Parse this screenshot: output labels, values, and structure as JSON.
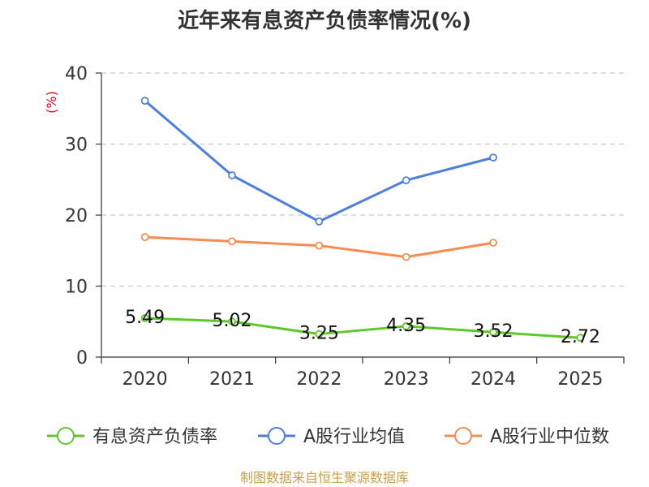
{
  "chart_data": {
    "type": "line",
    "title": "近年来有息资产负债率情况(%)",
    "ylabel": "(%)",
    "ylim": [
      0,
      40
    ],
    "yticks": [
      "0",
      "10",
      "20",
      "30",
      "40"
    ],
    "categories": [
      "2020",
      "2021",
      "2022",
      "2023",
      "2024",
      "2025"
    ],
    "grid": true,
    "legend_position": "bottom",
    "series": [
      {
        "name": "有息资产负债率",
        "color": "#5cc929",
        "values": [
          5.49,
          5.02,
          3.25,
          4.35,
          3.52,
          2.72
        ],
        "labels": [
          "5.49",
          "5.02",
          "3.25",
          "4.35",
          "3.52",
          "2.72"
        ]
      },
      {
        "name": "A股行业均值",
        "color": "#4d7fdc",
        "values": [
          36.1,
          25.6,
          19.1,
          24.9,
          28.1,
          null
        ]
      },
      {
        "name": "A股行业中位数",
        "color": "#f68c52",
        "values": [
          16.9,
          16.3,
          15.7,
          14.1,
          16.1,
          null
        ]
      }
    ]
  },
  "colors": {
    "unit_label": "#d9001b",
    "source_text": "#c8a04a",
    "axis": "#333333",
    "grid": "#c8c8c8"
  },
  "footer": {
    "source": "制图数据来自恒生聚源数据库"
  }
}
